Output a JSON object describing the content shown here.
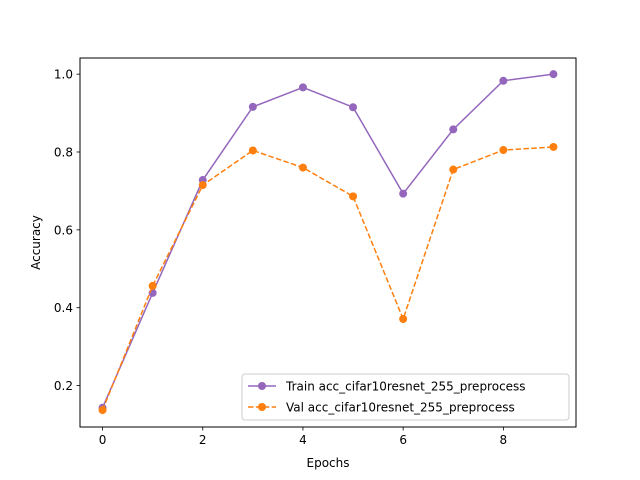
{
  "chart_data": {
    "type": "line",
    "title": "",
    "xlabel": "Epochs",
    "ylabel": "Accuracy",
    "xlim": [
      -0.45,
      9.45
    ],
    "ylim": [
      0.0935,
      1.0415
    ],
    "xticks": [
      0,
      2,
      4,
      6,
      8
    ],
    "yticks": [
      0.2,
      0.4,
      0.6,
      0.8,
      1.0
    ],
    "xtick_labels": [
      "0",
      "2",
      "4",
      "6",
      "8"
    ],
    "ytick_labels": [
      "0.2",
      "0.4",
      "0.6",
      "0.8",
      "1.0"
    ],
    "grid": false,
    "legend_position": "lower-right",
    "x": [
      0,
      1,
      2,
      3,
      4,
      5,
      6,
      7,
      8,
      9
    ],
    "series": [
      {
        "name": "Train acc_cifar10resnet_255_preprocess",
        "color": "#9467bd",
        "linestyle": "solid",
        "marker": "circle",
        "values": [
          0.143,
          0.438,
          0.728,
          0.916,
          0.966,
          0.915,
          0.693,
          0.858,
          0.983,
          1.0
        ]
      },
      {
        "name": "Val acc_cifar10resnet_255_preprocess",
        "color": "#ff7f0e",
        "linestyle": "dashed",
        "marker": "circle",
        "values": [
          0.137,
          0.456,
          0.715,
          0.804,
          0.76,
          0.686,
          0.371,
          0.755,
          0.805,
          0.813
        ]
      }
    ]
  }
}
